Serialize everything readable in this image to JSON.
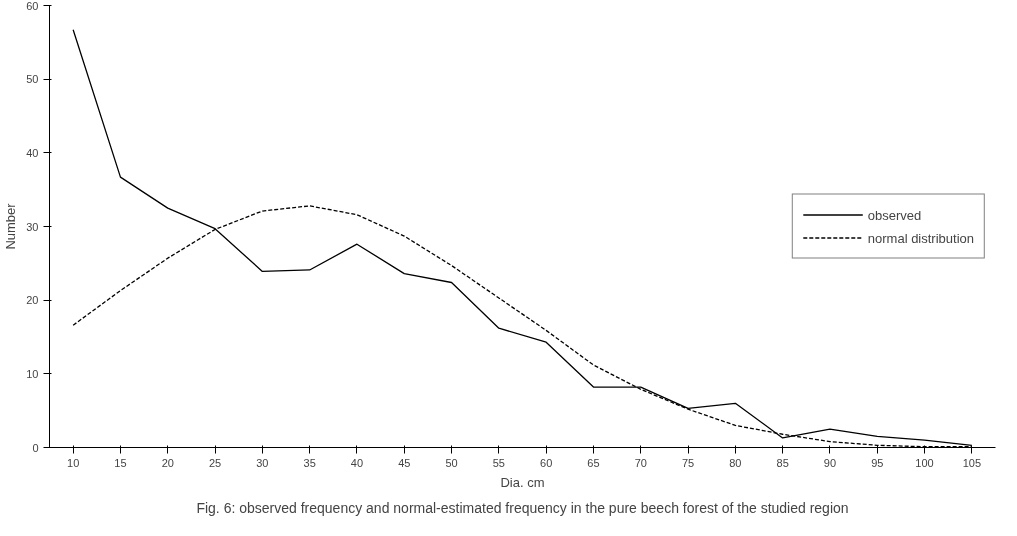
{
  "chart_data": {
    "type": "line",
    "xlabel": "Dia. cm",
    "ylabel": "Number",
    "categories": [
      "10",
      "15",
      "20",
      "25",
      "30",
      "35",
      "40",
      "45",
      "50",
      "55",
      "60",
      "65",
      "70",
      "75",
      "80",
      "85",
      "90",
      "95",
      "100",
      "105"
    ],
    "ylim": [
      0,
      60
    ],
    "yticks": [
      0,
      10,
      20,
      30,
      40,
      50,
      60
    ],
    "grid": false,
    "legend": "right",
    "marker": "none",
    "series": [
      {
        "name": "observed",
        "color": "#000000",
        "line_style": "solid",
        "values": [
          56.7,
          36.7,
          32.5,
          29.7,
          23.9,
          24.1,
          27.6,
          23.6,
          22.4,
          16.2,
          14.3,
          8.2,
          8.2,
          5.3,
          6.0,
          1.3,
          2.5,
          1.5,
          1.0,
          0.3
        ]
      },
      {
        "name": "normal distribution",
        "color": "#000000",
        "line_style": "dashed",
        "values": [
          16.6,
          21.3,
          25.7,
          29.6,
          32.1,
          32.8,
          31.6,
          28.7,
          24.7,
          20.3,
          15.9,
          11.2,
          7.9,
          5.2,
          3.0,
          1.8,
          0.8,
          0.3,
          0.1,
          0.1
        ]
      }
    ],
    "annotations": [
      "Fig. 6: observed frequency and normal-estimated frequency in the pure beech forest of the studied region"
    ]
  }
}
